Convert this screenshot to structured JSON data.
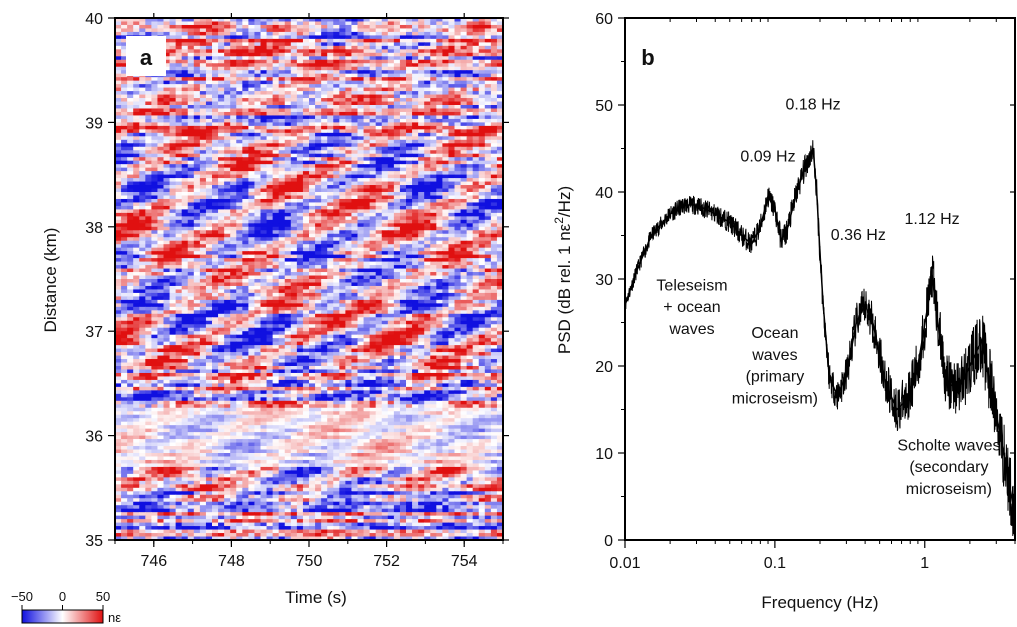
{
  "chart_data": [
    {
      "type": "heatmap",
      "panel_label": "a",
      "xlabel": "Time (s)",
      "ylabel": "Distance (km)",
      "xlim": [
        745,
        755
      ],
      "ylim": [
        35,
        40
      ],
      "x_ticks": [
        746,
        748,
        750,
        752,
        754
      ],
      "y_ticks": [
        35,
        36,
        37,
        38,
        39,
        40
      ],
      "colorbar": {
        "range": [
          -50,
          50
        ],
        "ticks": [
          -50,
          0,
          50
        ],
        "unit": "nε",
        "colors": [
          "#1010e0",
          "#ffffff",
          "#e01010"
        ]
      }
    },
    {
      "type": "line",
      "panel_label": "b",
      "xlabel": "Frequency (Hz)",
      "ylabel_parts": [
        "PSD (dB rel. 1 nε",
        "2",
        "/Hz)"
      ],
      "x_scale": "log",
      "xlim": [
        0.01,
        4
      ],
      "ylim": [
        0,
        60
      ],
      "x_ticks": [
        {
          "value": 0.01,
          "label": "0.01"
        },
        {
          "value": 0.1,
          "label": "0.1"
        },
        {
          "value": 1,
          "label": "1"
        }
      ],
      "y_ticks": [
        0,
        10,
        20,
        30,
        40,
        50,
        60
      ],
      "series": [
        {
          "color": "#000000",
          "points": [
            [
              0.01,
              27
            ],
            [
              0.012,
              31
            ],
            [
              0.015,
              35
            ],
            [
              0.02,
              37.5
            ],
            [
              0.025,
              38.5
            ],
            [
              0.03,
              38.5
            ],
            [
              0.04,
              37.5
            ],
            [
              0.05,
              36.5
            ],
            [
              0.06,
              35
            ],
            [
              0.07,
              34
            ],
            [
              0.08,
              36
            ],
            [
              0.09,
              39.5
            ],
            [
              0.1,
              38
            ],
            [
              0.11,
              34.5
            ],
            [
              0.12,
              35.5
            ],
            [
              0.14,
              40
            ],
            [
              0.16,
              43
            ],
            [
              0.18,
              45
            ],
            [
              0.19,
              40
            ],
            [
              0.2,
              33
            ],
            [
              0.21,
              27
            ],
            [
              0.23,
              19
            ],
            [
              0.26,
              16.5
            ],
            [
              0.3,
              19
            ],
            [
              0.35,
              25
            ],
            [
              0.4,
              27
            ],
            [
              0.45,
              25
            ],
            [
              0.55,
              18
            ],
            [
              0.65,
              15
            ],
            [
              0.75,
              16
            ],
            [
              0.9,
              20
            ],
            [
              1.05,
              27
            ],
            [
              1.12,
              30.5
            ],
            [
              1.2,
              26
            ],
            [
              1.4,
              18
            ],
            [
              1.7,
              17.5
            ],
            [
              2,
              20
            ],
            [
              2.4,
              23
            ],
            [
              2.8,
              17
            ],
            [
              3.2,
              12
            ],
            [
              3.6,
              7
            ],
            [
              4,
              3
            ]
          ]
        }
      ],
      "annotations": [
        {
          "text": "0.18 Hz",
          "x": 0.18,
          "y": 49.5
        },
        {
          "text": "0.09 Hz",
          "x": 0.09,
          "y": 43.5
        },
        {
          "text": "0.36 Hz",
          "x": 0.36,
          "y": 34.5
        },
        {
          "text": "1.12 Hz",
          "x": 1.12,
          "y": 36.3
        },
        {
          "text": "Teleseism",
          "x": 0.028,
          "y": 28.7
        },
        {
          "text": "+ ocean",
          "x": 0.028,
          "y": 26.2
        },
        {
          "text": "waves",
          "x": 0.028,
          "y": 23.7
        },
        {
          "text": "Ocean",
          "x": 0.1,
          "y": 23.2
        },
        {
          "text": "waves",
          "x": 0.1,
          "y": 20.7
        },
        {
          "text": "(primary",
          "x": 0.1,
          "y": 18.2
        },
        {
          "text": "microseism)",
          "x": 0.1,
          "y": 15.7
        },
        {
          "text": "Scholte waves",
          "x": 1.45,
          "y": 10.3
        },
        {
          "text": "(secondary",
          "x": 1.45,
          "y": 7.8
        },
        {
          "text": "microseism)",
          "x": 1.45,
          "y": 5.3
        }
      ]
    }
  ]
}
